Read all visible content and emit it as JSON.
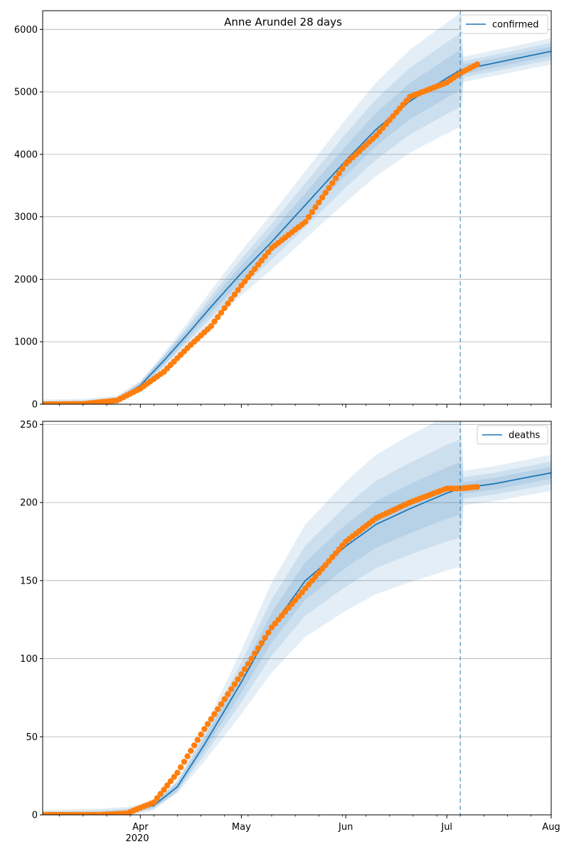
{
  "title": "Anne Arundel 28 days",
  "colors": {
    "model": "#1f77b4",
    "observed": "#ff7f0e",
    "band": "#1f77b4",
    "grid": "#b0b0b0"
  },
  "x_ticks": [
    "Apr",
    "May",
    "Jun",
    "Jul",
    "Aug"
  ],
  "x_year_label": "2020",
  "chart_data": [
    {
      "type": "line",
      "title": "Anne Arundel 28 days",
      "x_range": [
        "2020-03-03",
        "2020-08-01"
      ],
      "ylim": [
        0,
        6300
      ],
      "y_ticks": [
        0,
        1000,
        2000,
        3000,
        4000,
        5000,
        6000
      ],
      "grid": "horizontal",
      "legend": {
        "placement": "top-right",
        "entries": [
          "confirmed"
        ]
      },
      "forecast_start": "2020-07-05",
      "series": [
        {
          "name": "confirmed",
          "kind": "model",
          "x": [
            "2020-03-03",
            "2020-03-15",
            "2020-03-25",
            "2020-04-01",
            "2020-04-08",
            "2020-04-15",
            "2020-04-22",
            "2020-05-01",
            "2020-05-10",
            "2020-05-20",
            "2020-06-01",
            "2020-06-10",
            "2020-06-20",
            "2020-07-01",
            "2020-07-05",
            "2020-07-15",
            "2020-08-01"
          ],
          "y": [
            0,
            10,
            60,
            300,
            700,
            1120,
            1560,
            2100,
            2600,
            3190,
            3900,
            4400,
            4850,
            5220,
            5350,
            5460,
            5650
          ]
        },
        {
          "name": "",
          "kind": "observed",
          "x": [
            "2020-03-03",
            "2020-03-15",
            "2020-03-25",
            "2020-04-01",
            "2020-04-08",
            "2020-04-15",
            "2020-04-22",
            "2020-05-01",
            "2020-05-10",
            "2020-05-20",
            "2020-06-01",
            "2020-06-10",
            "2020-06-20",
            "2020-07-01",
            "2020-07-05",
            "2020-07-10"
          ],
          "y": [
            0,
            5,
            60,
            250,
            520,
            900,
            1250,
            1900,
            2500,
            2920,
            3850,
            4300,
            4920,
            5150,
            5300,
            5440
          ]
        }
      ]
    },
    {
      "type": "line",
      "x_range": [
        "2020-03-03",
        "2020-08-01"
      ],
      "ylim": [
        0,
        252
      ],
      "y_ticks": [
        0,
        50,
        100,
        150,
        200,
        250
      ],
      "grid": "horizontal",
      "legend": {
        "placement": "top-right",
        "entries": [
          "deaths"
        ]
      },
      "forecast_start": "2020-07-05",
      "series": [
        {
          "name": "deaths",
          "kind": "model",
          "x": [
            "2020-03-03",
            "2020-03-20",
            "2020-03-28",
            "2020-04-05",
            "2020-04-12",
            "2020-04-20",
            "2020-05-01",
            "2020-05-10",
            "2020-05-20",
            "2020-06-01",
            "2020-06-10",
            "2020-06-20",
            "2020-07-01",
            "2020-07-05",
            "2020-07-15",
            "2020-08-01"
          ],
          "y": [
            0,
            1,
            2,
            6,
            18,
            45,
            85,
            120,
            150,
            172,
            186,
            196,
            206,
            209,
            212,
            219
          ]
        },
        {
          "name": "",
          "kind": "observed",
          "x": [
            "2020-03-03",
            "2020-03-20",
            "2020-03-28",
            "2020-04-05",
            "2020-04-12",
            "2020-04-20",
            "2020-05-01",
            "2020-05-10",
            "2020-05-20",
            "2020-06-01",
            "2020-06-10",
            "2020-06-20",
            "2020-07-01",
            "2020-07-05",
            "2020-07-10"
          ],
          "y": [
            0,
            0,
            1,
            8,
            27,
            55,
            90,
            120,
            145,
            175,
            190,
            200,
            209,
            209,
            210
          ]
        }
      ]
    }
  ]
}
